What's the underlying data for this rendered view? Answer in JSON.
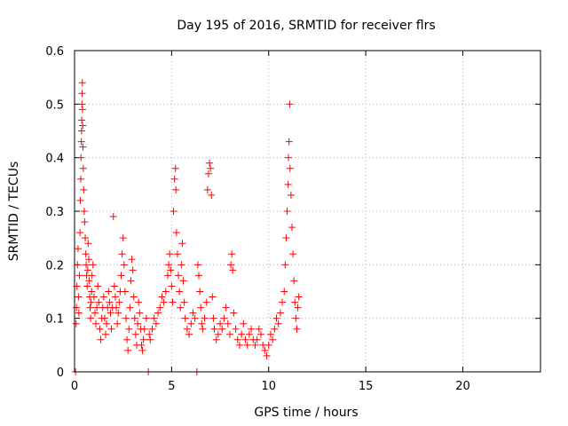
{
  "chart_data": {
    "type": "scatter",
    "title": "Day 195 of 2016, SRMTID for receiver flrs",
    "xlabel": "GPS time / hours",
    "ylabel": "SRMTID / TECUs",
    "xlim": [
      0,
      24
    ],
    "ylim": [
      0,
      0.6
    ],
    "xticks": [
      0,
      5,
      10,
      15,
      20
    ],
    "yticks": [
      0,
      0.1,
      0.2,
      0.3,
      0.4,
      0.5,
      0.6
    ],
    "xtick_labels": [
      "0",
      "5",
      "10",
      "15",
      "20"
    ],
    "ytick_labels": [
      "0",
      "0.1",
      "0.2",
      "0.3",
      "0.4",
      "0.5",
      "0.6"
    ],
    "grid": true,
    "marker": "+",
    "color": "#ff0000",
    "series": [
      {
        "name": "SRMTID",
        "points": [
          [
            0.05,
            0.0
          ],
          [
            0.08,
            0.09
          ],
          [
            0.1,
            0.12
          ],
          [
            0.12,
            0.16
          ],
          [
            0.15,
            0.2
          ],
          [
            0.18,
            0.23
          ],
          [
            0.2,
            0.14
          ],
          [
            0.22,
            0.11
          ],
          [
            0.25,
            0.18
          ],
          [
            0.28,
            0.26
          ],
          [
            0.3,
            0.32
          ],
          [
            0.32,
            0.36
          ],
          [
            0.33,
            0.4
          ],
          [
            0.35,
            0.43
          ],
          [
            0.36,
            0.45
          ],
          [
            0.37,
            0.47
          ],
          [
            0.38,
            0.5
          ],
          [
            0.39,
            0.52
          ],
          [
            0.4,
            0.54
          ],
          [
            0.41,
            0.49
          ],
          [
            0.42,
            0.46
          ],
          [
            0.43,
            0.42
          ],
          [
            0.45,
            0.38
          ],
          [
            0.47,
            0.34
          ],
          [
            0.5,
            0.3
          ],
          [
            0.52,
            0.28
          ],
          [
            0.55,
            0.25
          ],
          [
            0.58,
            0.22
          ],
          [
            0.6,
            0.2
          ],
          [
            0.62,
            0.18
          ],
          [
            0.65,
            0.16
          ],
          [
            0.68,
            0.19
          ],
          [
            0.7,
            0.24
          ],
          [
            0.73,
            0.21
          ],
          [
            0.75,
            0.17
          ],
          [
            0.78,
            0.14
          ],
          [
            0.8,
            0.12
          ],
          [
            0.83,
            0.1
          ],
          [
            0.85,
            0.13
          ],
          [
            0.88,
            0.15
          ],
          [
            0.9,
            0.18
          ],
          [
            0.95,
            0.2
          ],
          [
            1.0,
            0.14
          ],
          [
            1.05,
            0.11
          ],
          [
            1.1,
            0.09
          ],
          [
            1.15,
            0.12
          ],
          [
            1.2,
            0.16
          ],
          [
            1.25,
            0.13
          ],
          [
            1.3,
            0.08
          ],
          [
            1.35,
            0.06
          ],
          [
            1.4,
            0.1
          ],
          [
            1.45,
            0.12
          ],
          [
            1.5,
            0.14
          ],
          [
            1.55,
            0.1
          ],
          [
            1.6,
            0.07
          ],
          [
            1.65,
            0.09
          ],
          [
            1.7,
            0.12
          ],
          [
            1.75,
            0.15
          ],
          [
            1.8,
            0.13
          ],
          [
            1.85,
            0.11
          ],
          [
            1.9,
            0.08
          ],
          [
            1.95,
            0.12
          ],
          [
            2.0,
            0.29
          ],
          [
            2.05,
            0.16
          ],
          [
            2.1,
            0.14
          ],
          [
            2.15,
            0.12
          ],
          [
            2.2,
            0.09
          ],
          [
            2.25,
            0.11
          ],
          [
            2.3,
            0.13
          ],
          [
            2.35,
            0.15
          ],
          [
            2.4,
            0.18
          ],
          [
            2.45,
            0.22
          ],
          [
            2.5,
            0.25
          ],
          [
            2.55,
            0.2
          ],
          [
            2.6,
            0.15
          ],
          [
            2.65,
            0.1
          ],
          [
            2.7,
            0.06
          ],
          [
            2.75,
            0.04
          ],
          [
            2.8,
            0.08
          ],
          [
            2.85,
            0.12
          ],
          [
            2.9,
            0.17
          ],
          [
            2.95,
            0.21
          ],
          [
            3.0,
            0.19
          ],
          [
            3.05,
            0.14
          ],
          [
            3.1,
            0.1
          ],
          [
            3.15,
            0.07
          ],
          [
            3.2,
            0.05
          ],
          [
            3.25,
            0.09
          ],
          [
            3.3,
            0.13
          ],
          [
            3.35,
            0.11
          ],
          [
            3.4,
            0.08
          ],
          [
            3.45,
            0.05
          ],
          [
            3.5,
            0.04
          ],
          [
            3.55,
            0.06
          ],
          [
            3.6,
            0.08
          ],
          [
            3.7,
            0.1
          ],
          [
            3.8,
            0.0
          ],
          [
            3.85,
            0.07
          ],
          [
            3.9,
            0.06
          ],
          [
            4.0,
            0.08
          ],
          [
            4.1,
            0.1
          ],
          [
            4.2,
            0.09
          ],
          [
            4.3,
            0.11
          ],
          [
            4.4,
            0.12
          ],
          [
            4.5,
            0.14
          ],
          [
            4.6,
            0.13
          ],
          [
            4.7,
            0.15
          ],
          [
            4.8,
            0.18
          ],
          [
            4.85,
            0.2
          ],
          [
            4.9,
            0.22
          ],
          [
            4.95,
            0.19
          ],
          [
            5.0,
            0.16
          ],
          [
            5.05,
            0.13
          ],
          [
            5.1,
            0.3
          ],
          [
            5.15,
            0.36
          ],
          [
            5.2,
            0.38
          ],
          [
            5.22,
            0.34
          ],
          [
            5.25,
            0.26
          ],
          [
            5.3,
            0.22
          ],
          [
            5.35,
            0.18
          ],
          [
            5.4,
            0.15
          ],
          [
            5.45,
            0.12
          ],
          [
            5.5,
            0.2
          ],
          [
            5.55,
            0.24
          ],
          [
            5.6,
            0.17
          ],
          [
            5.65,
            0.13
          ],
          [
            5.7,
            0.1
          ],
          [
            5.8,
            0.08
          ],
          [
            5.9,
            0.07
          ],
          [
            6.0,
            0.09
          ],
          [
            6.1,
            0.11
          ],
          [
            6.2,
            0.1
          ],
          [
            6.3,
            0.0
          ],
          [
            6.35,
            0.2
          ],
          [
            6.4,
            0.18
          ],
          [
            6.45,
            0.15
          ],
          [
            6.5,
            0.12
          ],
          [
            6.55,
            0.09
          ],
          [
            6.6,
            0.08
          ],
          [
            6.7,
            0.1
          ],
          [
            6.8,
            0.13
          ],
          [
            6.85,
            0.34
          ],
          [
            6.9,
            0.37
          ],
          [
            6.95,
            0.39
          ],
          [
            7.0,
            0.38
          ],
          [
            7.05,
            0.33
          ],
          [
            7.1,
            0.14
          ],
          [
            7.15,
            0.1
          ],
          [
            7.2,
            0.08
          ],
          [
            7.3,
            0.06
          ],
          [
            7.4,
            0.07
          ],
          [
            7.5,
            0.09
          ],
          [
            7.6,
            0.08
          ],
          [
            7.7,
            0.1
          ],
          [
            7.8,
            0.12
          ],
          [
            7.9,
            0.09
          ],
          [
            8.0,
            0.07
          ],
          [
            8.05,
            0.2
          ],
          [
            8.1,
            0.22
          ],
          [
            8.15,
            0.19
          ],
          [
            8.2,
            0.11
          ],
          [
            8.3,
            0.08
          ],
          [
            8.4,
            0.06
          ],
          [
            8.5,
            0.05
          ],
          [
            8.6,
            0.07
          ],
          [
            8.7,
            0.09
          ],
          [
            8.8,
            0.06
          ],
          [
            8.9,
            0.05
          ],
          [
            9.0,
            0.07
          ],
          [
            9.1,
            0.08
          ],
          [
            9.2,
            0.06
          ],
          [
            9.3,
            0.05
          ],
          [
            9.4,
            0.06
          ],
          [
            9.5,
            0.08
          ],
          [
            9.6,
            0.07
          ],
          [
            9.7,
            0.05
          ],
          [
            9.8,
            0.04
          ],
          [
            9.9,
            0.03
          ],
          [
            10.0,
            0.05
          ],
          [
            10.1,
            0.07
          ],
          [
            10.2,
            0.06
          ],
          [
            10.3,
            0.08
          ],
          [
            10.4,
            0.1
          ],
          [
            10.5,
            0.09
          ],
          [
            10.6,
            0.11
          ],
          [
            10.7,
            0.13
          ],
          [
            10.8,
            0.15
          ],
          [
            10.85,
            0.2
          ],
          [
            10.9,
            0.25
          ],
          [
            10.95,
            0.3
          ],
          [
            11.0,
            0.35
          ],
          [
            11.02,
            0.4
          ],
          [
            11.05,
            0.43
          ],
          [
            11.08,
            0.5
          ],
          [
            11.1,
            0.38
          ],
          [
            11.15,
            0.33
          ],
          [
            11.2,
            0.27
          ],
          [
            11.25,
            0.22
          ],
          [
            11.3,
            0.17
          ],
          [
            11.35,
            0.13
          ],
          [
            11.4,
            0.1
          ],
          [
            11.45,
            0.08
          ],
          [
            11.5,
            0.12
          ],
          [
            11.55,
            0.14
          ]
        ]
      }
    ]
  }
}
